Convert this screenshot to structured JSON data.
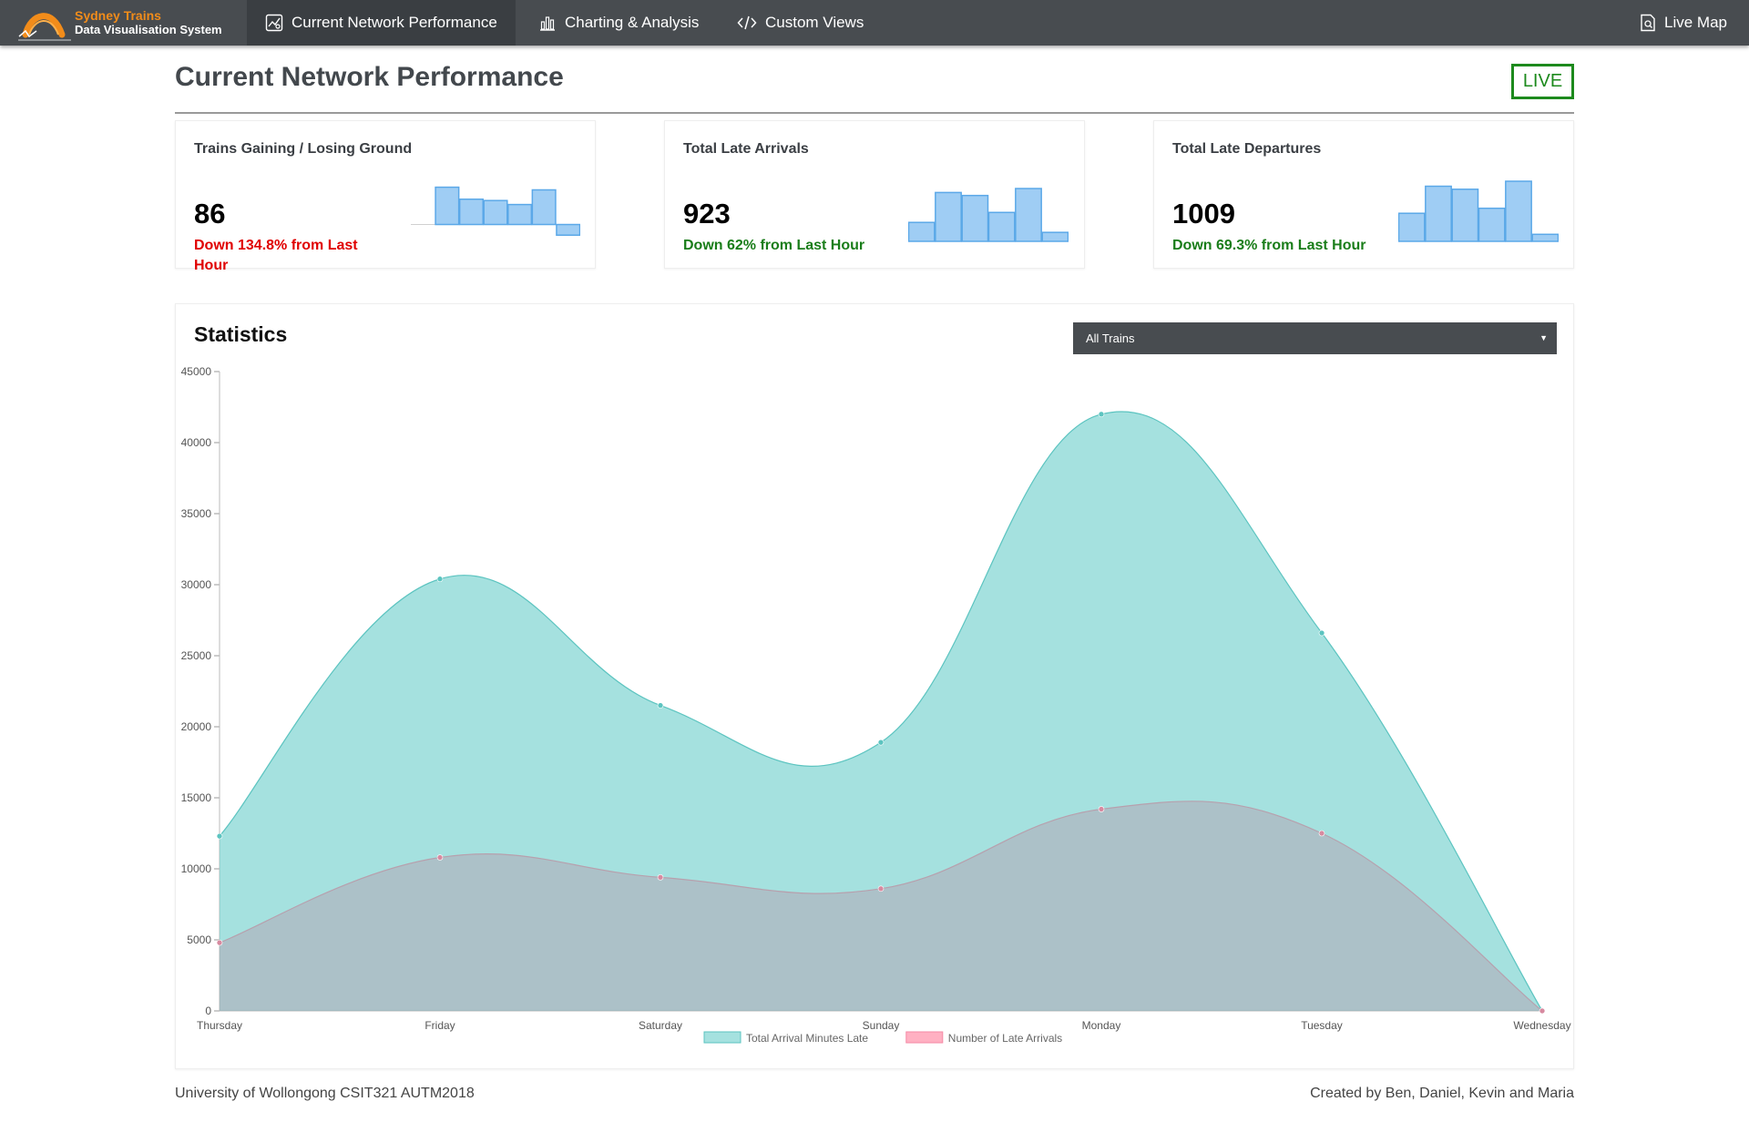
{
  "brand": {
    "title": "Sydney Trains",
    "subtitle": "Data Visualisation System"
  },
  "nav": {
    "current": "Current Network Performance",
    "charting": "Charting & Analysis",
    "custom": "Custom Views",
    "live_map": "Live Map"
  },
  "page": {
    "title": "Current Network Performance",
    "live_label": "LIVE"
  },
  "colors": {
    "nav_bg": "#484c50",
    "brand_orange": "#f28c1a",
    "live_green": "#1d8a1d",
    "negative_red": "#e00000",
    "positive_green": "#1a7d1a",
    "spark_fill": "#9fcdf4",
    "spark_stroke": "#5ba8e8",
    "series_arrival_minutes": "#6ecfcc",
    "series_late_arrivals": "#f4a7b9"
  },
  "cards": [
    {
      "title": "Trains Gaining / Losing Ground",
      "value": "86",
      "change": "Down 134.8% from Last Hour",
      "trend": "negative",
      "spark_values": [
        0.0,
        28,
        19,
        18,
        15,
        26,
        -8
      ]
    },
    {
      "title": "Total Late Arrivals",
      "value": "923",
      "change": "Down 62% from Last Hour",
      "trend": "positive",
      "spark_values": [
        19,
        49,
        46,
        29,
        53,
        9
      ]
    },
    {
      "title": "Total Late Departures",
      "value": "1009",
      "change": "Down 69.3% from Last Hour",
      "trend": "positive",
      "spark_values": [
        28,
        55,
        52,
        33,
        60,
        7
      ]
    }
  ],
  "statistics": {
    "title": "Statistics",
    "filter": {
      "selected": "All Trains"
    }
  },
  "chart_data": {
    "type": "area",
    "categories": [
      "Thursday",
      "Friday",
      "Saturday",
      "Sunday",
      "Monday",
      "Tuesday",
      "Wednesday"
    ],
    "series": [
      {
        "name": "Total Arrival Minutes Late",
        "values": [
          12300,
          30400,
          21500,
          18900,
          42000,
          26600,
          0
        ]
      },
      {
        "name": "Number of Late Arrivals",
        "values": [
          4800,
          10800,
          9400,
          8600,
          14200,
          12500,
          0
        ]
      }
    ],
    "ylim": [
      0,
      45000
    ],
    "yticks": [
      0,
      5000,
      10000,
      15000,
      20000,
      25000,
      30000,
      35000,
      40000,
      45000
    ],
    "legend": "bottom",
    "grid": false
  },
  "footer": {
    "left": "University of Wollongong CSIT321 AUTM2018",
    "right": "Created by Ben, Daniel, Kevin and Maria"
  }
}
